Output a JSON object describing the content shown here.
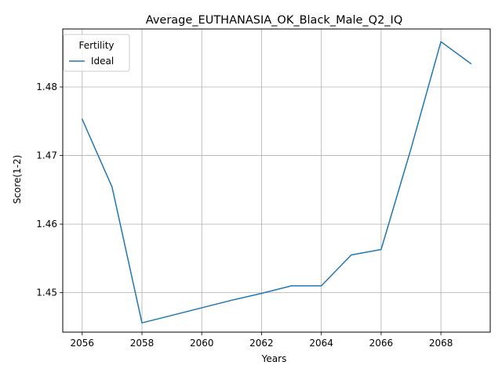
{
  "chart_data": {
    "type": "line",
    "title": "Average_EUTHANASIA_OK_Black_Male_Q2_IQ",
    "xlabel": "Years",
    "ylabel": "Score(1-2)",
    "xlim": [
      2055.35,
      2069.65
    ],
    "ylim": [
      1.44425,
      1.48845
    ],
    "x_ticks": [
      "2056",
      "2058",
      "2060",
      "2062",
      "2064",
      "2066",
      "2068"
    ],
    "y_ticks": [
      "1.45",
      "1.46",
      "1.47",
      "1.48"
    ],
    "grid": true,
    "legend": {
      "title": "Fertility",
      "position": "top-left"
    },
    "series": [
      {
        "name": "Ideal",
        "color": "#1f77b4",
        "x": [
          2056,
          2057,
          2058,
          2059,
          2060,
          2061,
          2062,
          2063,
          2064,
          2065,
          2066,
          2067,
          2068,
          2069
        ],
        "y": [
          1.4753,
          1.4654,
          1.4456,
          1.4467,
          1.4478,
          1.4489,
          1.4499,
          1.451,
          1.451,
          1.4555,
          1.4563,
          1.471,
          1.4866,
          1.4834
        ]
      }
    ]
  }
}
